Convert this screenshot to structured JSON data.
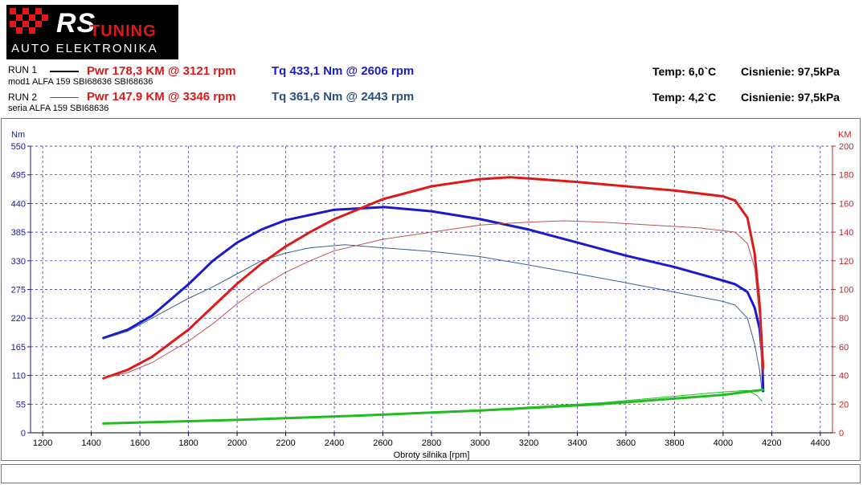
{
  "logo": {
    "brand": "RS",
    "tuning": "TUNING",
    "subtitle": "AUTO ELEKTRONIKA"
  },
  "run1": {
    "label": "RUN 1",
    "pwr": "Pwr  178,3 KM @ 3121 rpm",
    "tq": "Tq 433,1 Nm @ 2606 rpm",
    "desc": "mod1 ALFA 159 SBI68636 SBI68636",
    "temp": "Temp: 6,0`C",
    "pressure": "Cisnienie: 97,5kPa"
  },
  "run2": {
    "label": "RUN 2",
    "pwr": "Pwr  147.9 KM @ 3346 rpm",
    "tq": "Tq 361,6 Nm @ 2443 rpm",
    "desc": "seria ALFA 159  SBI68636",
    "temp": "Temp: 4,2`C",
    "pressure": "Cisnienie: 97,5kPa"
  },
  "colors": {
    "torque1": "#1a1acc",
    "torque2": "#3a5f8f",
    "power1": "#dd1a1a",
    "power2": "#c05050",
    "green": "#22bb22",
    "axisLeft": "#1a1a9a",
    "axisRight": "#cc2020"
  },
  "chart_data": {
    "type": "line",
    "xlabel": "Obroty silnika [rpm]",
    "ylabel_left": "Nm",
    "ylabel_right": "KM",
    "xlim": [
      1150,
      4450
    ],
    "ylim_left": [
      0,
      550
    ],
    "ylim_right": [
      0,
      200
    ],
    "x_ticks": [
      1200,
      1400,
      1600,
      1800,
      2000,
      2200,
      2400,
      2600,
      2800,
      3000,
      3200,
      3400,
      3600,
      3800,
      4000,
      4200,
      4400
    ],
    "y_ticks_left": [
      0,
      55,
      110,
      165,
      220,
      275,
      330,
      385,
      440,
      495,
      550
    ],
    "y_ticks_right": [
      0,
      20,
      40,
      60,
      80,
      100,
      120,
      140,
      160,
      180,
      200
    ],
    "grid": true,
    "series": [
      {
        "name": "Tq RUN 1",
        "axis": "left",
        "key": "torque1",
        "width": 3,
        "points": [
          [
            1450,
            182
          ],
          [
            1550,
            198
          ],
          [
            1650,
            225
          ],
          [
            1800,
            285
          ],
          [
            1900,
            330
          ],
          [
            2000,
            365
          ],
          [
            2100,
            390
          ],
          [
            2200,
            408
          ],
          [
            2400,
            428
          ],
          [
            2606,
            433
          ],
          [
            2800,
            425
          ],
          [
            3000,
            410
          ],
          [
            3200,
            390
          ],
          [
            3400,
            365
          ],
          [
            3600,
            340
          ],
          [
            3800,
            318
          ],
          [
            4000,
            292
          ],
          [
            4050,
            285
          ],
          [
            4100,
            270
          ],
          [
            4130,
            240
          ],
          [
            4150,
            200
          ],
          [
            4160,
            150
          ],
          [
            4165,
            80
          ]
        ]
      },
      {
        "name": "Tq RUN 2",
        "axis": "left",
        "key": "torque2",
        "width": 1,
        "points": [
          [
            1450,
            180
          ],
          [
            1550,
            195
          ],
          [
            1650,
            220
          ],
          [
            1800,
            258
          ],
          [
            1900,
            280
          ],
          [
            2000,
            305
          ],
          [
            2100,
            330
          ],
          [
            2200,
            345
          ],
          [
            2300,
            355
          ],
          [
            2443,
            361
          ],
          [
            2600,
            355
          ],
          [
            2800,
            348
          ],
          [
            3000,
            338
          ],
          [
            3200,
            322
          ],
          [
            3400,
            305
          ],
          [
            3600,
            288
          ],
          [
            3800,
            270
          ],
          [
            4000,
            252
          ],
          [
            4050,
            245
          ],
          [
            4100,
            220
          ],
          [
            4130,
            170
          ],
          [
            4150,
            120
          ],
          [
            4160,
            80
          ]
        ]
      },
      {
        "name": "Pwr RUN 1",
        "axis": "right",
        "key": "power1",
        "width": 3,
        "points": [
          [
            1450,
            38
          ],
          [
            1550,
            44
          ],
          [
            1650,
            53
          ],
          [
            1800,
            72
          ],
          [
            1900,
            88
          ],
          [
            2000,
            104
          ],
          [
            2100,
            118
          ],
          [
            2200,
            130
          ],
          [
            2300,
            140
          ],
          [
            2400,
            149
          ],
          [
            2600,
            163
          ],
          [
            2800,
            172
          ],
          [
            3000,
            177
          ],
          [
            3121,
            178.3
          ],
          [
            3200,
            177.5
          ],
          [
            3400,
            175
          ],
          [
            3600,
            172
          ],
          [
            3800,
            169
          ],
          [
            4000,
            165
          ],
          [
            4050,
            162
          ],
          [
            4100,
            150
          ],
          [
            4130,
            125
          ],
          [
            4150,
            90
          ],
          [
            4165,
            45
          ]
        ]
      },
      {
        "name": "Pwr RUN 2",
        "axis": "right",
        "key": "power2",
        "width": 1,
        "points": [
          [
            1450,
            38
          ],
          [
            1550,
            42
          ],
          [
            1650,
            49
          ],
          [
            1800,
            64
          ],
          [
            1900,
            76
          ],
          [
            2000,
            90
          ],
          [
            2100,
            102
          ],
          [
            2200,
            112
          ],
          [
            2300,
            120
          ],
          [
            2400,
            127
          ],
          [
            2600,
            135
          ],
          [
            2800,
            140
          ],
          [
            3000,
            145
          ],
          [
            3200,
            147
          ],
          [
            3346,
            147.9
          ],
          [
            3500,
            147
          ],
          [
            3700,
            145
          ],
          [
            3900,
            143
          ],
          [
            4050,
            140
          ],
          [
            4100,
            132
          ],
          [
            4130,
            115
          ],
          [
            4150,
            80
          ],
          [
            4160,
            40
          ]
        ]
      },
      {
        "name": "Green RUN 1",
        "axis": "right",
        "key": "green",
        "width": 3,
        "points": [
          [
            1450,
            6.5
          ],
          [
            2000,
            9
          ],
          [
            2500,
            12
          ],
          [
            3000,
            15.5
          ],
          [
            3500,
            20
          ],
          [
            4000,
            26.5
          ],
          [
            4165,
            30
          ]
        ]
      },
      {
        "name": "Green RUN 2",
        "axis": "right",
        "key": "green",
        "width": 1,
        "points": [
          [
            1450,
            6.5
          ],
          [
            2000,
            9
          ],
          [
            2500,
            12.5
          ],
          [
            3000,
            16
          ],
          [
            3500,
            21
          ],
          [
            4000,
            28.5
          ],
          [
            4100,
            29.5
          ],
          [
            4140,
            26
          ],
          [
            4160,
            22
          ]
        ]
      }
    ]
  }
}
